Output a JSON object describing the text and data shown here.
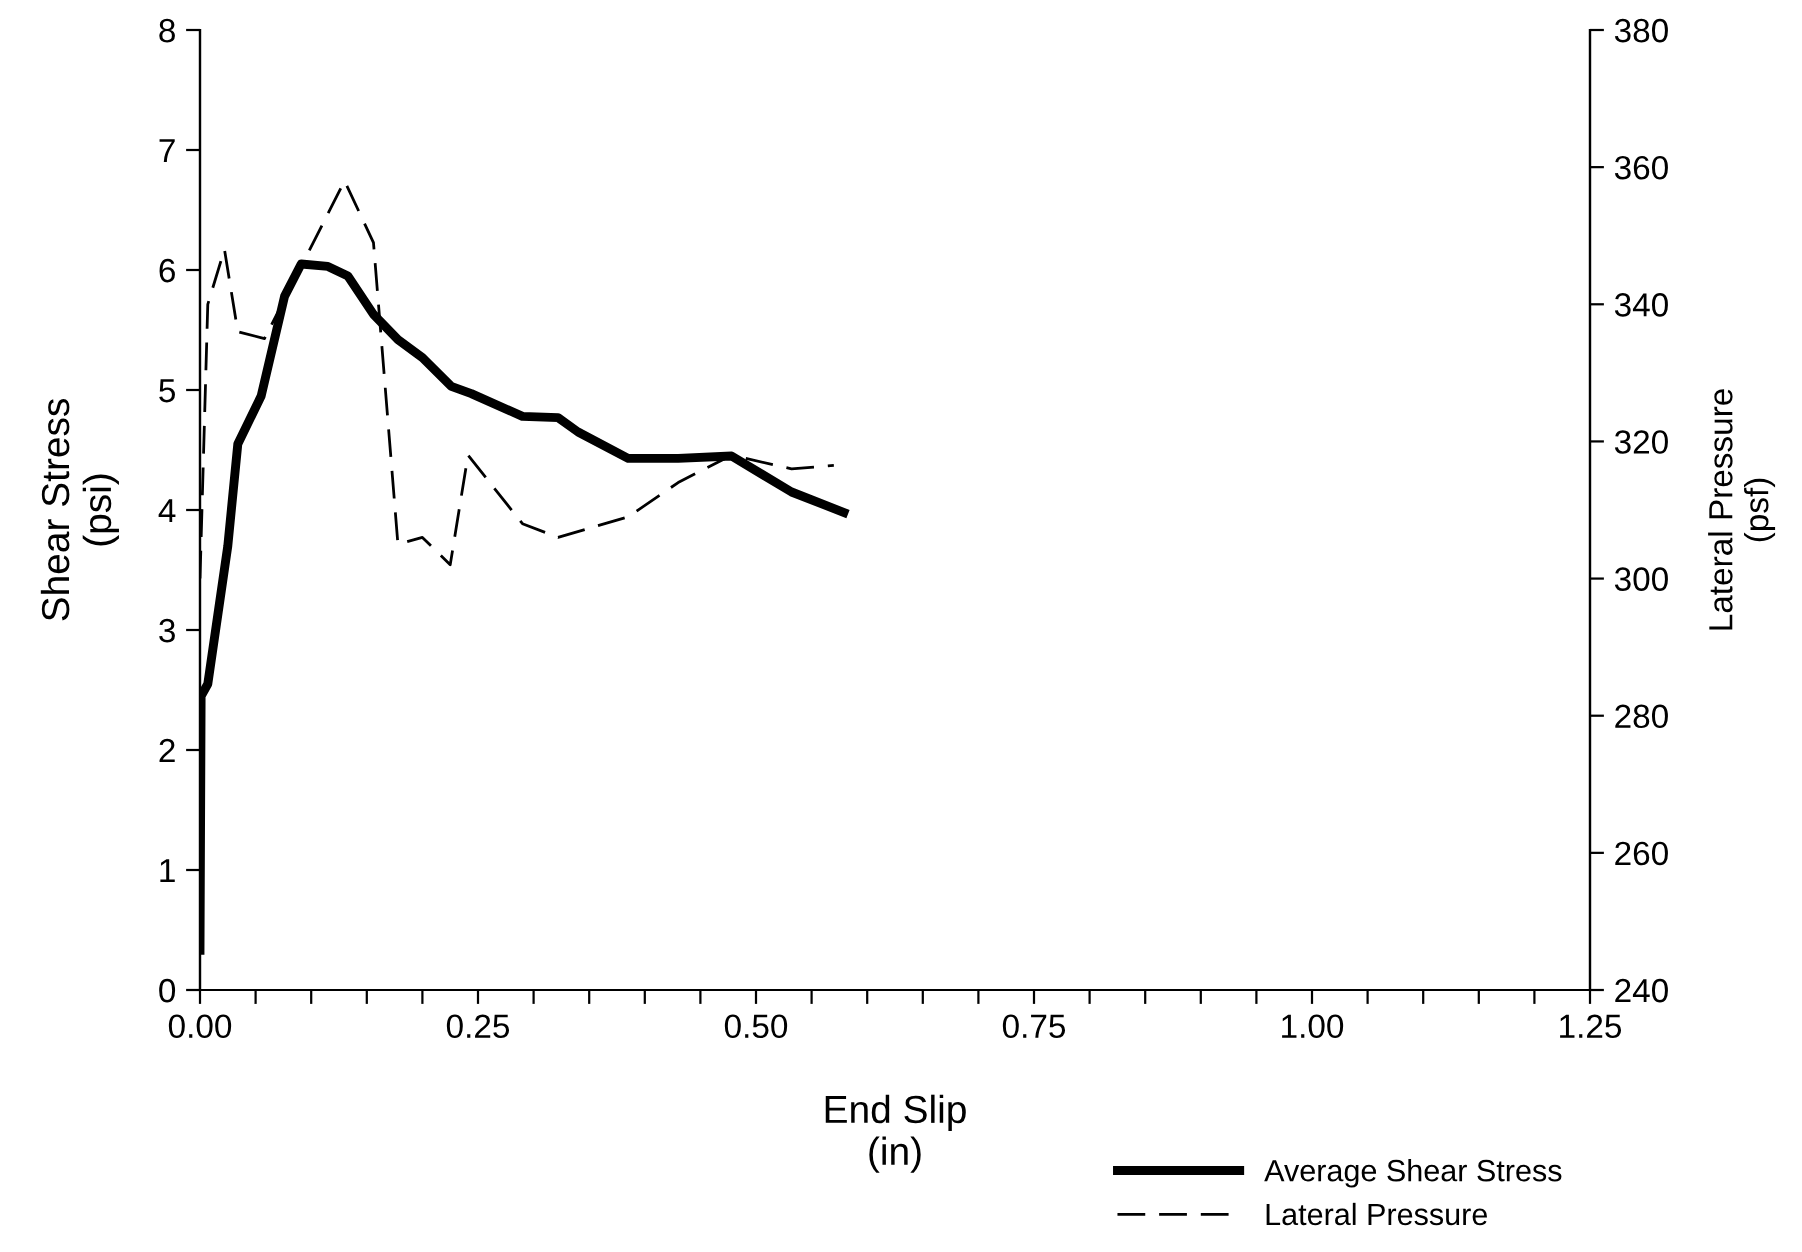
{
  "chart_data": {
    "type": "line",
    "xlabel": "End Slip\n(in)",
    "ylabel": "Shear Stress\n(psi)",
    "y2label": "Lateral Pressure\n(psf)",
    "xlim": [
      0,
      1.25
    ],
    "xticks": [
      {
        "value": 0,
        "label": "0.00"
      },
      {
        "value": 0.05,
        "label": null
      },
      {
        "value": 0.1,
        "label": null
      },
      {
        "value": 0.15,
        "label": null
      },
      {
        "value": 0.2,
        "label": null
      },
      {
        "value": 0.25,
        "label": "0.25"
      },
      {
        "value": 0.3,
        "label": null
      },
      {
        "value": 0.35,
        "label": null
      },
      {
        "value": 0.4,
        "label": null
      },
      {
        "value": 0.45,
        "label": null
      },
      {
        "value": 0.5,
        "label": "0.50"
      },
      {
        "value": 0.55,
        "label": null
      },
      {
        "value": 0.6,
        "label": null
      },
      {
        "value": 0.65,
        "label": null
      },
      {
        "value": 0.7,
        "label": null
      },
      {
        "value": 0.75,
        "label": "0.75"
      },
      {
        "value": 0.8,
        "label": null
      },
      {
        "value": 0.85,
        "label": null
      },
      {
        "value": 0.9,
        "label": null
      },
      {
        "value": 0.95,
        "label": null
      },
      {
        "value": 1.0,
        "label": "1.00"
      },
      {
        "value": 1.05,
        "label": null
      },
      {
        "value": 1.1,
        "label": null
      },
      {
        "value": 1.15,
        "label": null
      },
      {
        "value": 1.2,
        "label": null
      },
      {
        "value": 1.25,
        "label": "1.25"
      }
    ],
    "ylim": [
      0,
      8
    ],
    "yticks": [
      0,
      1,
      2,
      3,
      4,
      5,
      6,
      7,
      8
    ],
    "y2lim": [
      240,
      380
    ],
    "y2ticks": [
      240,
      260,
      280,
      300,
      320,
      340,
      360,
      380
    ],
    "grid": false,
    "legend": "bottom right",
    "marker": "none",
    "series": [
      {
        "name": "Average Shear Stress",
        "color": "#000000",
        "line_style": "solid",
        "x": [
          0,
          0.001,
          0.007,
          0.025,
          0.034,
          0.055,
          0.076,
          0.091,
          0.115,
          0.133,
          0.156,
          0.178,
          0.2,
          0.226,
          0.244,
          0.29,
          0.322,
          0.34,
          0.385,
          0.43,
          0.478,
          0.532,
          0.579
        ],
        "values": [
          0.33,
          2.45,
          2.55,
          3.7,
          4.55,
          4.95,
          5.78,
          6.05,
          6.03,
          5.95,
          5.63,
          5.42,
          5.27,
          5.03,
          4.97,
          4.78,
          4.77,
          4.65,
          4.43,
          4.43,
          4.45,
          4.15,
          3.98
        ]
      },
      {
        "name": "Lateral Pressure",
        "color": "#000000",
        "line_style": "dashed",
        "axis": "y2",
        "x": [
          0,
          0.007,
          0.022,
          0.034,
          0.058,
          0.13,
          0.156,
          0.178,
          0.2,
          0.225,
          0.241,
          0.29,
          0.322,
          0.385,
          0.43,
          0.478,
          0.532,
          0.57
        ],
        "values": [
          300,
          340,
          348,
          336,
          335,
          358,
          349,
          305,
          306,
          302,
          318,
          308,
          306,
          309,
          314,
          318,
          316,
          316.5
        ]
      }
    ]
  }
}
